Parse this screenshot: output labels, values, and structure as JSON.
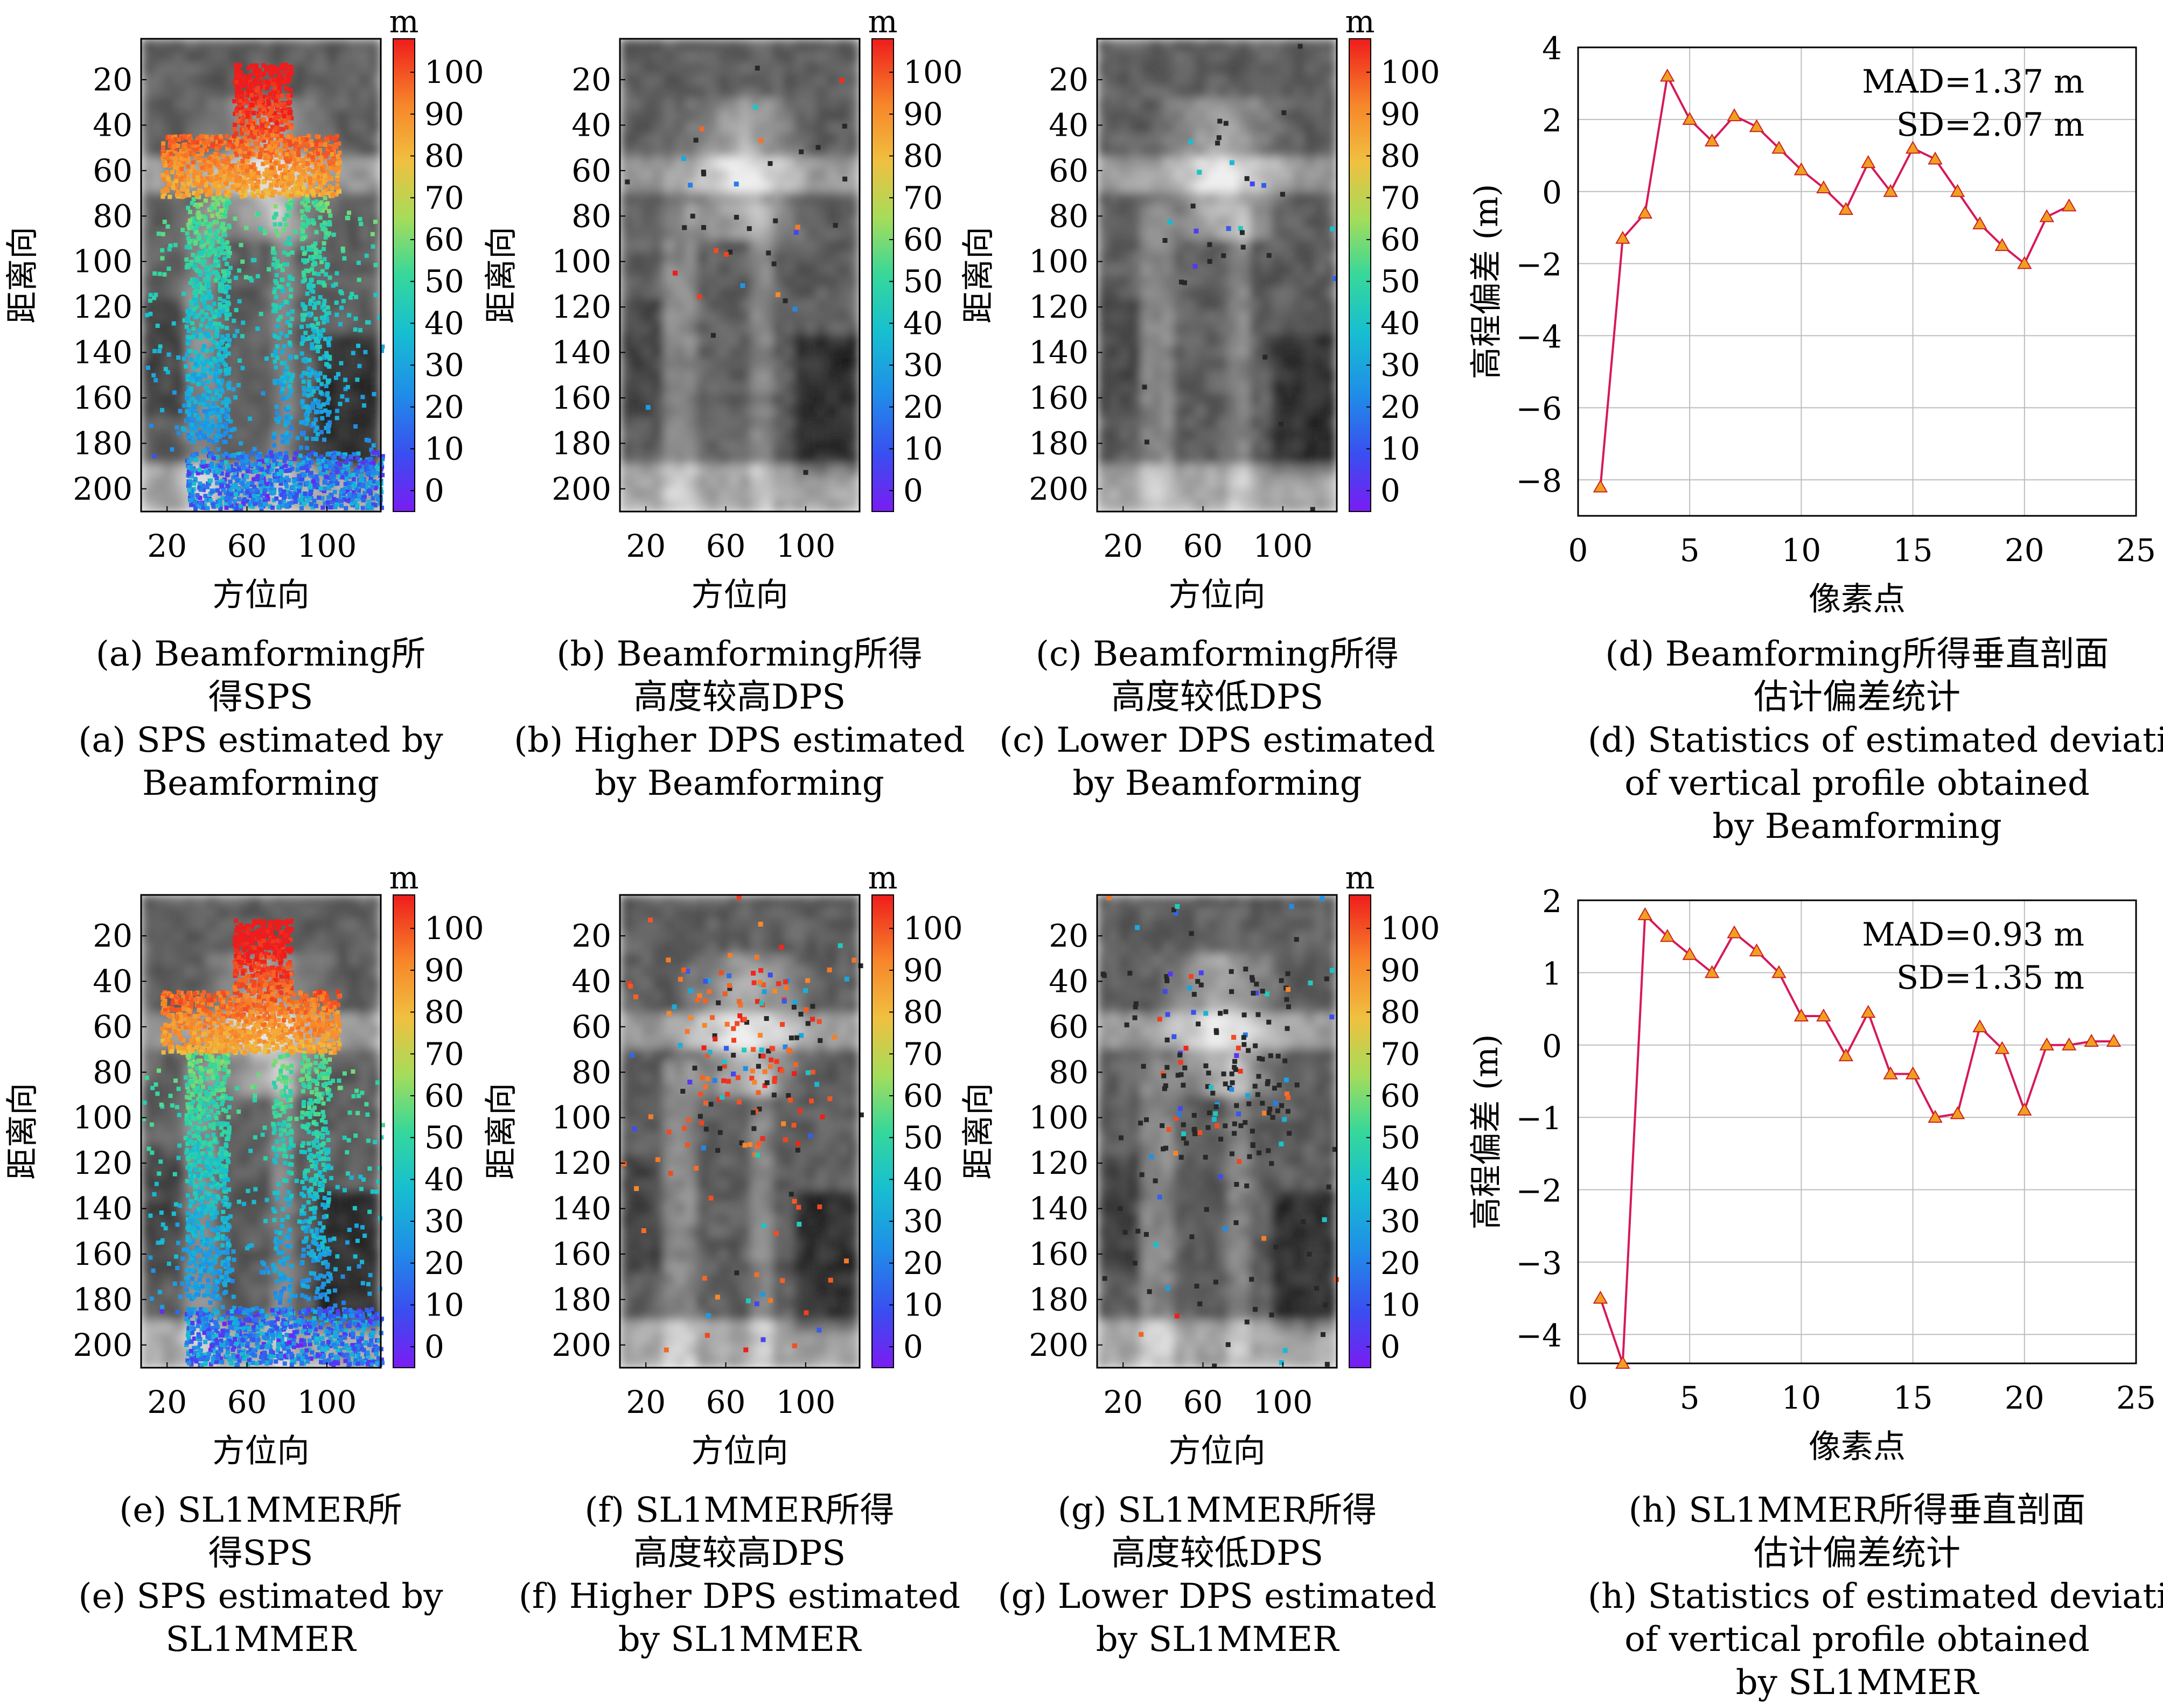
{
  "colorbar": {
    "unit": "m",
    "ticks": [
      100,
      90,
      80,
      70,
      60,
      50,
      40,
      30,
      20,
      10,
      0
    ]
  },
  "map_axes": {
    "ylabel": "距离向",
    "xlabel": "方位向",
    "yticks": [
      20,
      40,
      60,
      80,
      100,
      120,
      140,
      160,
      180,
      200
    ],
    "xticks": [
      20,
      60,
      100
    ]
  },
  "panels": [
    {
      "id": "a",
      "overlay": "sps",
      "caption_cn": [
        "(a) Beamforming所",
        "得SPS"
      ],
      "caption_en": [
        "(a) SPS estimated by",
        "Beamforming"
      ]
    },
    {
      "id": "b",
      "overlay": "dps_high_sparse",
      "caption_cn": [
        "(b) Beamforming所得",
        "高度较高DPS"
      ],
      "caption_en": [
        "(b) Higher DPS estimated",
        "by Beamforming"
      ]
    },
    {
      "id": "c",
      "overlay": "dps_low_sparse",
      "caption_cn": [
        "(c) Beamforming所得",
        "高度较低DPS"
      ],
      "caption_en": [
        "(c) Lower DPS estimated",
        "by Beamforming"
      ]
    },
    {
      "id": "e",
      "overlay": "sps",
      "caption_cn": [
        "(e) SL1MMER所",
        "得SPS"
      ],
      "caption_en": [
        "(e) SPS estimated by",
        "SL1MMER"
      ]
    },
    {
      "id": "f",
      "overlay": "dps_high_dense",
      "caption_cn": [
        "(f) SL1MMER所得",
        "高度较高DPS"
      ],
      "caption_en": [
        "(f) Higher DPS estimated",
        "by SL1MMER"
      ]
    },
    {
      "id": "g",
      "overlay": "dps_low_dense",
      "caption_cn": [
        "(g) SL1MMER所得",
        "高度较低DPS"
      ],
      "caption_en": [
        "(g) Lower DPS estimated",
        "by SL1MMER"
      ]
    }
  ],
  "chart_data": [
    {
      "type": "line",
      "id": "d",
      "xlabel": "像素点",
      "ylabel": "高程偏差 (m)",
      "xlim": [
        0,
        25
      ],
      "ylim": [
        -9,
        4
      ],
      "xticks": [
        0,
        5,
        10,
        15,
        20,
        25
      ],
      "yticks": [
        4,
        2,
        0,
        -2,
        -4,
        -6,
        -8
      ],
      "ytick_labels": [
        "4",
        "2",
        "0",
        "−2",
        "−4",
        "−6",
        "−8"
      ],
      "grid": true,
      "annotations": [
        "MAD=1.37 m",
        "SD=2.07 m"
      ],
      "x": [
        1,
        2,
        3,
        4,
        5,
        6,
        7,
        8,
        9,
        10,
        11,
        12,
        13,
        14,
        15,
        16,
        17,
        18,
        19,
        20,
        21,
        22
      ],
      "values": [
        -8.2,
        -1.3,
        -0.6,
        3.2,
        2.0,
        1.4,
        2.1,
        1.8,
        1.2,
        0.6,
        0.1,
        -0.5,
        0.8,
        0.0,
        1.2,
        0.9,
        0.0,
        -0.9,
        -1.5,
        -2.0,
        -0.7,
        -0.4
      ],
      "line_color": "#d6195b",
      "marker_color": "#f0a020",
      "caption_cn": [
        "(d) Beamforming所得垂直剖面",
        "估计偏差统计"
      ],
      "caption_en": [
        "(d) Statistics of estimated deviation",
        "of vertical profile obtained",
        "by Beamforming"
      ]
    },
    {
      "type": "line",
      "id": "h",
      "xlabel": "像素点",
      "ylabel": "高程偏差 (m)",
      "xlim": [
        0,
        25
      ],
      "ylim": [
        -4.4,
        2
      ],
      "xticks": [
        0,
        5,
        10,
        15,
        20,
        25
      ],
      "yticks": [
        2,
        1,
        0,
        -1,
        -2,
        -3,
        -4
      ],
      "ytick_labels": [
        "2",
        "1",
        "0",
        "−1",
        "−2",
        "−3",
        "−4"
      ],
      "grid": true,
      "annotations": [
        "MAD=0.93 m",
        "SD=1.35 m"
      ],
      "x": [
        1,
        2,
        3,
        4,
        5,
        6,
        7,
        8,
        9,
        10,
        11,
        12,
        13,
        14,
        15,
        16,
        17,
        18,
        19,
        20,
        21,
        22,
        23,
        24
      ],
      "values": [
        -3.5,
        -4.4,
        1.8,
        1.5,
        1.25,
        1.0,
        1.55,
        1.3,
        1.0,
        0.4,
        0.4,
        -0.15,
        0.45,
        -0.4,
        -0.4,
        -1.0,
        -0.95,
        0.25,
        -0.05,
        -0.9,
        0.0,
        0.0,
        0.05,
        0.05
      ],
      "line_color": "#d6195b",
      "marker_color": "#f0a020",
      "caption_cn": [
        "(h) SL1MMER所得垂直剖面",
        "估计偏差统计"
      ],
      "caption_en": [
        "(h) Statistics of estimated deviation",
        "of vertical profile obtained",
        "by SL1MMER"
      ]
    }
  ]
}
